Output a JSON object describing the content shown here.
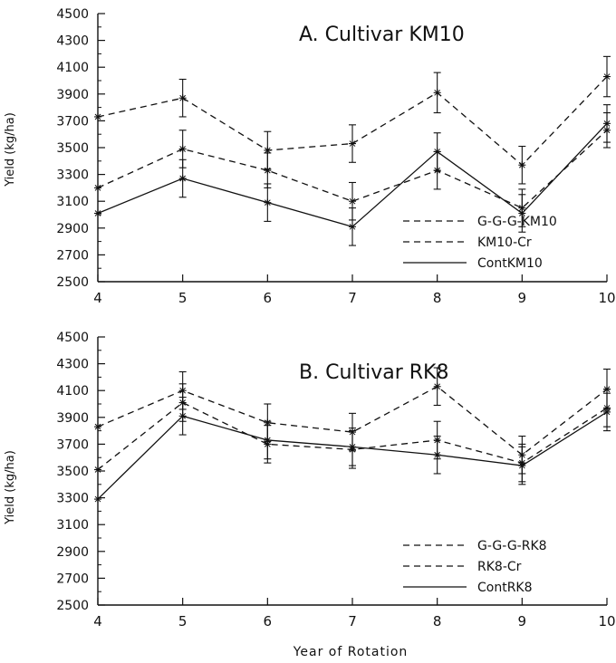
{
  "figure": {
    "xlabel": "Year of Rotation"
  },
  "chart_data": [
    {
      "type": "line",
      "title": "A. Cultivar KM10",
      "ylabel": "Yield (kg/ha)",
      "xlabel": "",
      "x": [
        4,
        5,
        6,
        7,
        8,
        9,
        10
      ],
      "xlim": [
        4,
        10
      ],
      "ylim": [
        2500,
        4500
      ],
      "xticks": [
        "4",
        "5",
        "6",
        "7",
        "8",
        "9",
        "10"
      ],
      "yticks": [
        "2500",
        "2700",
        "2900",
        "3100",
        "3300",
        "3500",
        "3700",
        "3900",
        "4100",
        "4300",
        "4500"
      ],
      "grid": false,
      "legend_position": "bottom-right",
      "series": [
        {
          "name": "G-G-G-KM10",
          "style": "dashed",
          "values": [
            3730,
            3870,
            3480,
            3530,
            3910,
            3370,
            4030
          ],
          "error": [
            0,
            140,
            140,
            140,
            150,
            140,
            150
          ]
        },
        {
          "name": "KM10-Cr",
          "style": "dashed",
          "values": [
            3200,
            3490,
            3330,
            3100,
            3330,
            3050,
            3630
          ],
          "error": [
            0,
            140,
            130,
            140,
            140,
            140,
            130
          ]
        },
        {
          "name": "ContKM10",
          "style": "solid",
          "values": [
            3010,
            3270,
            3090,
            2910,
            3470,
            3010,
            3680
          ],
          "error": [
            0,
            140,
            140,
            140,
            140,
            140,
            140
          ]
        }
      ]
    },
    {
      "type": "line",
      "title": "B. Cultivar RK8",
      "ylabel": "Yield (kg/ha)",
      "xlabel": "",
      "x": [
        4,
        5,
        6,
        7,
        8,
        9,
        10
      ],
      "xlim": [
        4,
        10
      ],
      "ylim": [
        2500,
        4500
      ],
      "xticks": [
        "4",
        "5",
        "6",
        "7",
        "8",
        "9",
        "10"
      ],
      "yticks": [
        "2500",
        "2700",
        "2900",
        "3100",
        "3300",
        "3500",
        "3700",
        "3900",
        "4100",
        "4300",
        "4500"
      ],
      "grid": false,
      "legend_position": "bottom-right",
      "series": [
        {
          "name": "G-G-G-RK8",
          "style": "dashed",
          "values": [
            3830,
            4100,
            3860,
            3790,
            4130,
            3620,
            4110
          ],
          "error": [
            0,
            140,
            140,
            140,
            140,
            140,
            150
          ]
        },
        {
          "name": "RK8-Cr",
          "style": "dashed",
          "values": [
            3510,
            4010,
            3700,
            3660,
            3730,
            3560,
            3970
          ],
          "error": [
            0,
            140,
            140,
            140,
            140,
            140,
            140
          ]
        },
        {
          "name": "ContRK8",
          "style": "solid",
          "values": [
            3290,
            3910,
            3730,
            3680,
            3620,
            3540,
            3940
          ],
          "error": [
            0,
            140,
            140,
            140,
            140,
            140,
            140
          ]
        }
      ]
    }
  ]
}
